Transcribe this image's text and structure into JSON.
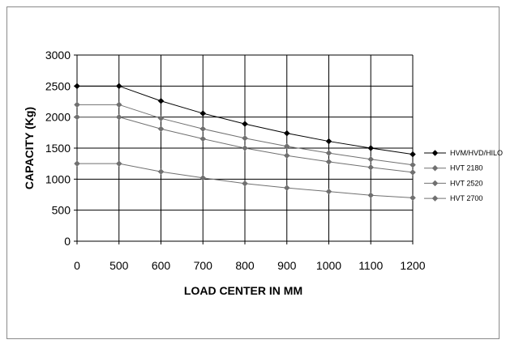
{
  "chart_data": {
    "type": "line",
    "title": "",
    "xlabel": "LOAD CENTER IN MM",
    "ylabel": "CAPACITY (Kg)",
    "categories": [
      "0",
      "500",
      "600",
      "700",
      "800",
      "900",
      "1000",
      "1100",
      "1200"
    ],
    "ylim": [
      0,
      3000
    ],
    "yticks": [
      "0",
      "500",
      "1000",
      "1500",
      "2000",
      "2500",
      "3000"
    ],
    "grid": true,
    "legend_position": "right",
    "series": [
      {
        "name": "HVM/HVD/HILO",
        "color": "#000000",
        "values": [
          2500,
          2500,
          2260,
          2060,
          1890,
          1740,
          1610,
          1500,
          1400
        ]
      },
      {
        "name": "HVT 2180",
        "color": "#707070",
        "values": [
          2200,
          2200,
          1980,
          1810,
          1660,
          1530,
          1420,
          1320,
          1230
        ]
      },
      {
        "name": "HVT 2520",
        "color": "#707070",
        "values": [
          2000,
          2000,
          1810,
          1650,
          1500,
          1380,
          1280,
          1190,
          1110
        ]
      },
      {
        "name": "HVT 2700",
        "color": "#707070",
        "values": [
          1250,
          1250,
          1120,
          1020,
          930,
          860,
          800,
          740,
          700
        ]
      }
    ]
  }
}
